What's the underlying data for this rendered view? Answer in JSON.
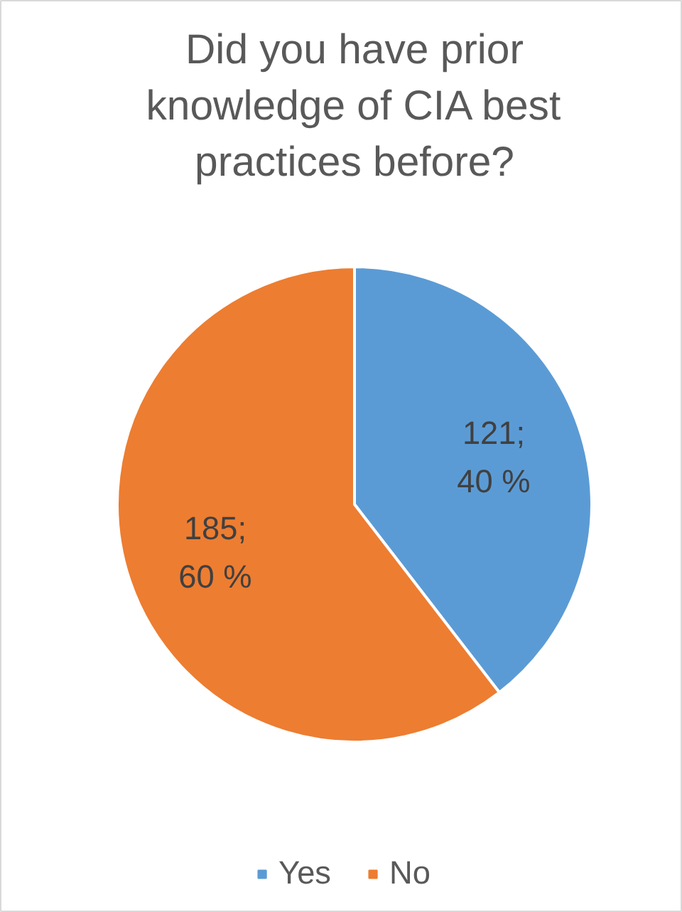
{
  "chart_data": {
    "type": "pie",
    "title": "Did you have prior knowledge of CIA best practices before?",
    "categories": [
      "Yes",
      "No"
    ],
    "values": [
      121,
      185
    ],
    "colors": [
      "#5b9bd5",
      "#ed7d31"
    ],
    "value_labels": [
      "121;\n40 %",
      "185;\n60 %"
    ],
    "legend": "bottom"
  }
}
